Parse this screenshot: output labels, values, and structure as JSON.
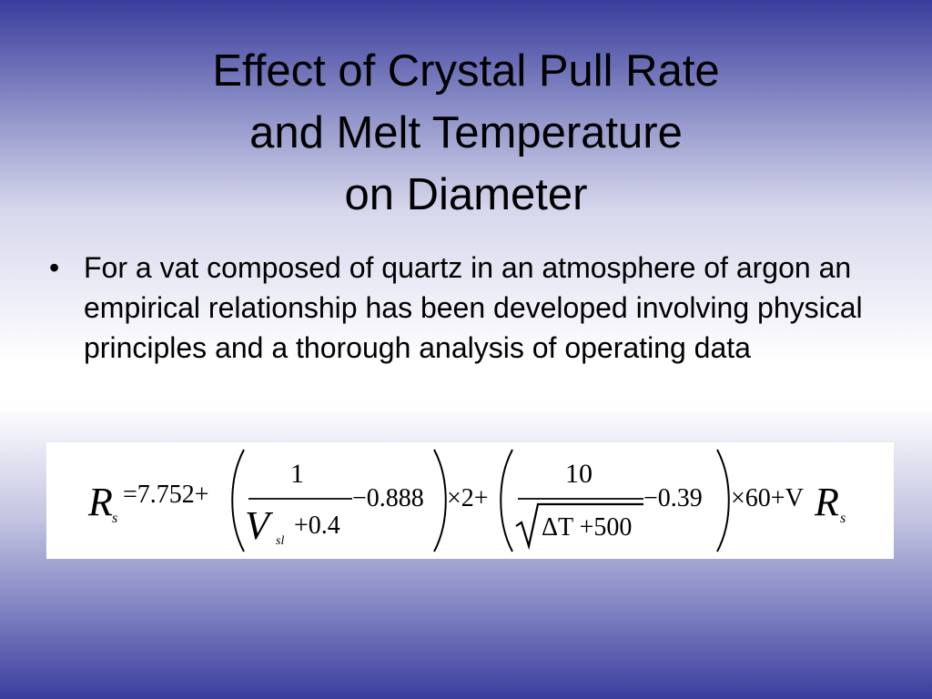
{
  "title": {
    "lines": [
      "Effect of Crystal Pull Rate",
      "and Melt Temperature",
      "on Diameter"
    ]
  },
  "bullet": {
    "marker": "•",
    "text": "For a vat composed of quartz in an atmosphere of argon an empirical relationship has been developed involving physical principles and a thorough analysis of operating data"
  },
  "equation": {
    "lhs_symbol": "R",
    "lhs_subscript": "s",
    "eq_const": "=7.752+",
    "frac1_num": "1",
    "frac1_den_symbol": "V",
    "frac1_den_subscript": "sl",
    "frac1_den_rest": "+0.4",
    "term1_minus": "−0.888",
    "times2": "×2+",
    "frac2_num": "10",
    "frac2_den": "ΔT +500",
    "term2_minus": "−0.39",
    "times60": "×60+V",
    "rhs_symbol": "R",
    "rhs_subscript": "s"
  }
}
